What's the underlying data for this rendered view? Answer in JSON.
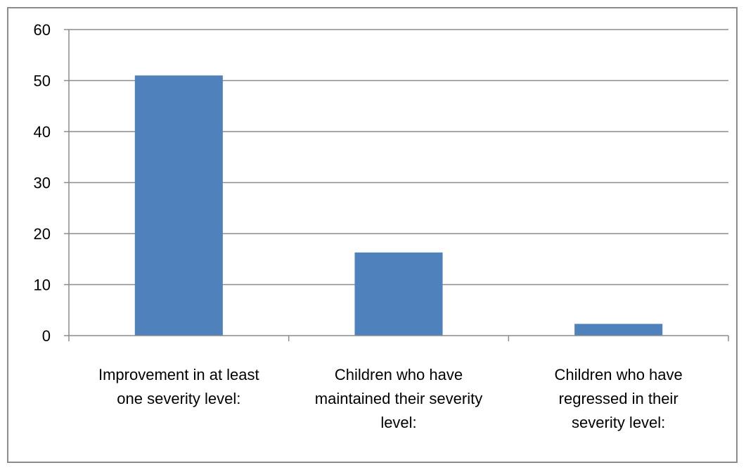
{
  "chart_data": {
    "type": "bar",
    "title": "",
    "xlabel": "",
    "ylabel": "",
    "categories": [
      [
        "Improvement in at least",
        "one severity level:"
      ],
      [
        "Children who have",
        "maintained their severity",
        "level:"
      ],
      [
        "Children who have",
        "regressed in their",
        "severity level:"
      ]
    ],
    "values": [
      51,
      16.3,
      2.3
    ],
    "ylim": [
      0,
      60
    ],
    "yticks": [
      "0",
      "10",
      "20",
      "30",
      "40",
      "50",
      "60"
    ],
    "grid": true,
    "legend": "none",
    "bar_color": "#4f81bd"
  }
}
